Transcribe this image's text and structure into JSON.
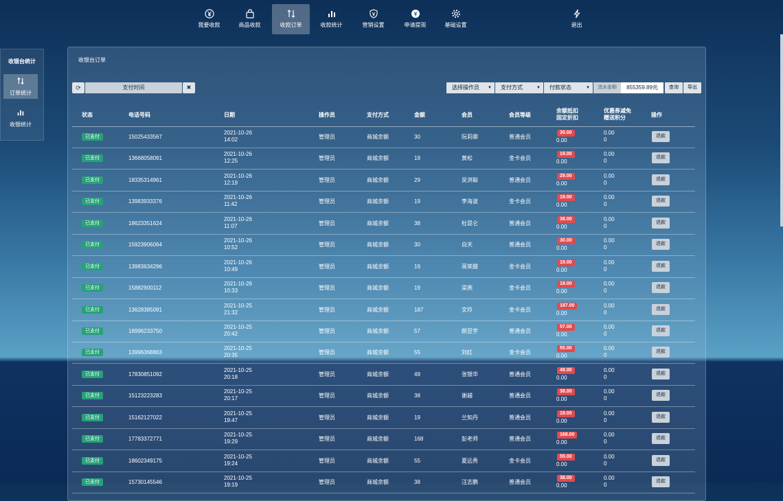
{
  "nav": [
    {
      "label": "我要收款",
      "icon": "yen-icon"
    },
    {
      "label": "商品收款",
      "icon": "bag-icon"
    },
    {
      "label": "收款订单",
      "icon": "sort-icon"
    },
    {
      "label": "收款统计",
      "icon": "bar-chart-icon"
    },
    {
      "label": "营销设置",
      "icon": "shield-yen-icon"
    },
    {
      "label": "申请提现",
      "icon": "withdraw-icon"
    },
    {
      "label": "基础设置",
      "icon": "gear-icon"
    },
    {
      "label": "退出",
      "icon": "lightning-icon"
    }
  ],
  "sidebar": {
    "title": "收银台统计",
    "items": [
      {
        "label": "订单统计",
        "icon": "sort-icon"
      },
      {
        "label": "收银统计",
        "icon": "bar-chart-icon"
      }
    ]
  },
  "panel": {
    "title": "收银台订单"
  },
  "filters": {
    "date_placeholder": "支付时间",
    "operator": "选择操作员",
    "pay_method": "支付方式",
    "pay_status": "付款状态",
    "flow_label": "流水金额",
    "flow_value": "855359.89元",
    "query": "查询",
    "export": "导出"
  },
  "columns": {
    "status": "状态",
    "phone": "电话号码",
    "date": "日期",
    "operator": "操作员",
    "method": "支付方式",
    "amount": "金额",
    "member": "会员",
    "level": "会员等级",
    "deduct1": "余额抵扣",
    "deduct2": "固定折扣",
    "coupon1": "优惠券减免",
    "coupon2": "赠送积分",
    "action": "操作"
  },
  "rows": [
    {
      "status": "已支付",
      "phone": "15025433567",
      "date": "2021-10-26",
      "time": "14:02",
      "operator": "管理员",
      "method": "商城余额",
      "amount": "30",
      "member": "阮莉卿",
      "level": "普通会员",
      "deduct": "30.00",
      "discount": "0.00",
      "coupon": "0.00",
      "points": "0",
      "action": "退款"
    },
    {
      "status": "已支付",
      "phone": "13668058091",
      "date": "2021-10-26",
      "time": "12:25",
      "operator": "管理员",
      "method": "商城余额",
      "amount": "19",
      "member": "黄松",
      "level": "金卡会员",
      "deduct": "19.00",
      "discount": "0.00",
      "coupon": "0.00",
      "points": "0",
      "action": "退款"
    },
    {
      "status": "已支付",
      "phone": "18335314961",
      "date": "2021-10-26",
      "time": "12:19",
      "operator": "管理员",
      "method": "商城余额",
      "amount": "29",
      "member": "吴洪聪",
      "level": "普通会员",
      "deduct": "29.00",
      "discount": "0.00",
      "coupon": "0.00",
      "points": "0",
      "action": "退款"
    },
    {
      "status": "已支付",
      "phone": "13983933376",
      "date": "2021-10-26",
      "time": "11:42",
      "operator": "管理员",
      "method": "商城余额",
      "amount": "19",
      "member": "李海波",
      "level": "金卡会员",
      "deduct": "19.00",
      "discount": "0.00",
      "coupon": "0.00",
      "points": "0",
      "action": "退款"
    },
    {
      "status": "已支付",
      "phone": "18623351624",
      "date": "2021-10-26",
      "time": "11:07",
      "operator": "管理员",
      "method": "商城余额",
      "amount": "38",
      "member": "杜昆仑",
      "level": "普通会员",
      "deduct": "38.00",
      "discount": "0.00",
      "coupon": "0.00",
      "points": "0",
      "action": "退款"
    },
    {
      "status": "已支付",
      "phone": "15923906064",
      "date": "2021-10-26",
      "time": "10:52",
      "operator": "管理员",
      "method": "商城余额",
      "amount": "30",
      "member": "白天",
      "level": "普通会员",
      "deduct": "30.00",
      "discount": "0.00",
      "coupon": "0.00",
      "points": "0",
      "action": "退款"
    },
    {
      "status": "已支付",
      "phone": "13983634296",
      "date": "2021-10-26",
      "time": "10:49",
      "operator": "管理员",
      "method": "商城余额",
      "amount": "19",
      "member": "蒋荣腊",
      "level": "金卡会员",
      "deduct": "19.00",
      "discount": "0.00",
      "coupon": "0.00",
      "points": "0",
      "action": "退款"
    },
    {
      "status": "已支付",
      "phone": "15882900112",
      "date": "2021-10-26",
      "time": "10:33",
      "operator": "管理员",
      "method": "商城余额",
      "amount": "19",
      "member": "梁燕",
      "level": "金卡会员",
      "deduct": "19.00",
      "discount": "0.00",
      "coupon": "0.00",
      "points": "0",
      "action": "退款"
    },
    {
      "status": "已支付",
      "phone": "13628385091",
      "date": "2021-10-25",
      "time": "21:32",
      "operator": "管理员",
      "method": "商城余额",
      "amount": "187",
      "member": "文玲",
      "level": "金卡会员",
      "deduct": "187.00",
      "discount": "0.00",
      "coupon": "0.00",
      "points": "0",
      "action": "退款"
    },
    {
      "status": "已支付",
      "phone": "18996233750",
      "date": "2021-10-25",
      "time": "20:42",
      "operator": "管理员",
      "method": "商城余额",
      "amount": "57",
      "member": "颜昱宇",
      "level": "普通会员",
      "deduct": "57.00",
      "discount": "0.00",
      "coupon": "0.00",
      "points": "0",
      "action": "退款"
    },
    {
      "status": "已支付",
      "phone": "13996368863",
      "date": "2021-10-25",
      "time": "20:35",
      "operator": "管理员",
      "method": "商城余额",
      "amount": "55",
      "member": "刘红",
      "level": "金卡会员",
      "deduct": "55.00",
      "discount": "0.00",
      "coupon": "0.00",
      "points": "0",
      "action": "退款"
    },
    {
      "status": "已支付",
      "phone": "17830851092",
      "date": "2021-10-25",
      "time": "20:18",
      "operator": "管理员",
      "method": "商城余额",
      "amount": "49",
      "member": "张银华",
      "level": "普通会员",
      "deduct": "49.00",
      "discount": "0.00",
      "coupon": "0.00",
      "points": "0",
      "action": "退款"
    },
    {
      "status": "已支付",
      "phone": "15123223283",
      "date": "2021-10-25",
      "time": "20:17",
      "operator": "管理员",
      "method": "商城余额",
      "amount": "38",
      "member": "谢越",
      "level": "普通会员",
      "deduct": "38.00",
      "discount": "0.00",
      "coupon": "0.00",
      "points": "0",
      "action": "退款"
    },
    {
      "status": "已支付",
      "phone": "15162127022",
      "date": "2021-10-25",
      "time": "19:47",
      "operator": "管理员",
      "method": "商城余额",
      "amount": "19",
      "member": "兰知丹",
      "level": "普通会员",
      "deduct": "19.00",
      "discount": "0.00",
      "coupon": "0.00",
      "points": "0",
      "action": "退款"
    },
    {
      "status": "已支付",
      "phone": "17783372771",
      "date": "2021-10-25",
      "time": "19:29",
      "operator": "管理员",
      "method": "商城余额",
      "amount": "168",
      "member": "彭老师",
      "level": "普通会员",
      "deduct": "168.00",
      "discount": "0.00",
      "coupon": "0.00",
      "points": "0",
      "action": "退款"
    },
    {
      "status": "已支付",
      "phone": "18602349175",
      "date": "2021-10-25",
      "time": "19:24",
      "operator": "管理员",
      "method": "商城余额",
      "amount": "55",
      "member": "夏远秀",
      "level": "金卡会员",
      "deduct": "55.00",
      "discount": "0.00",
      "coupon": "0.00",
      "points": "0",
      "action": "退款"
    },
    {
      "status": "已支付",
      "phone": "15730145546",
      "date": "2021-10-25",
      "time": "19:19",
      "operator": "管理员",
      "method": "商城余额",
      "amount": "38",
      "member": "汪志鹏",
      "level": "普通会员",
      "deduct": "38.00",
      "discount": "0.00",
      "coupon": "0.00",
      "points": "0",
      "action": "退款"
    }
  ]
}
